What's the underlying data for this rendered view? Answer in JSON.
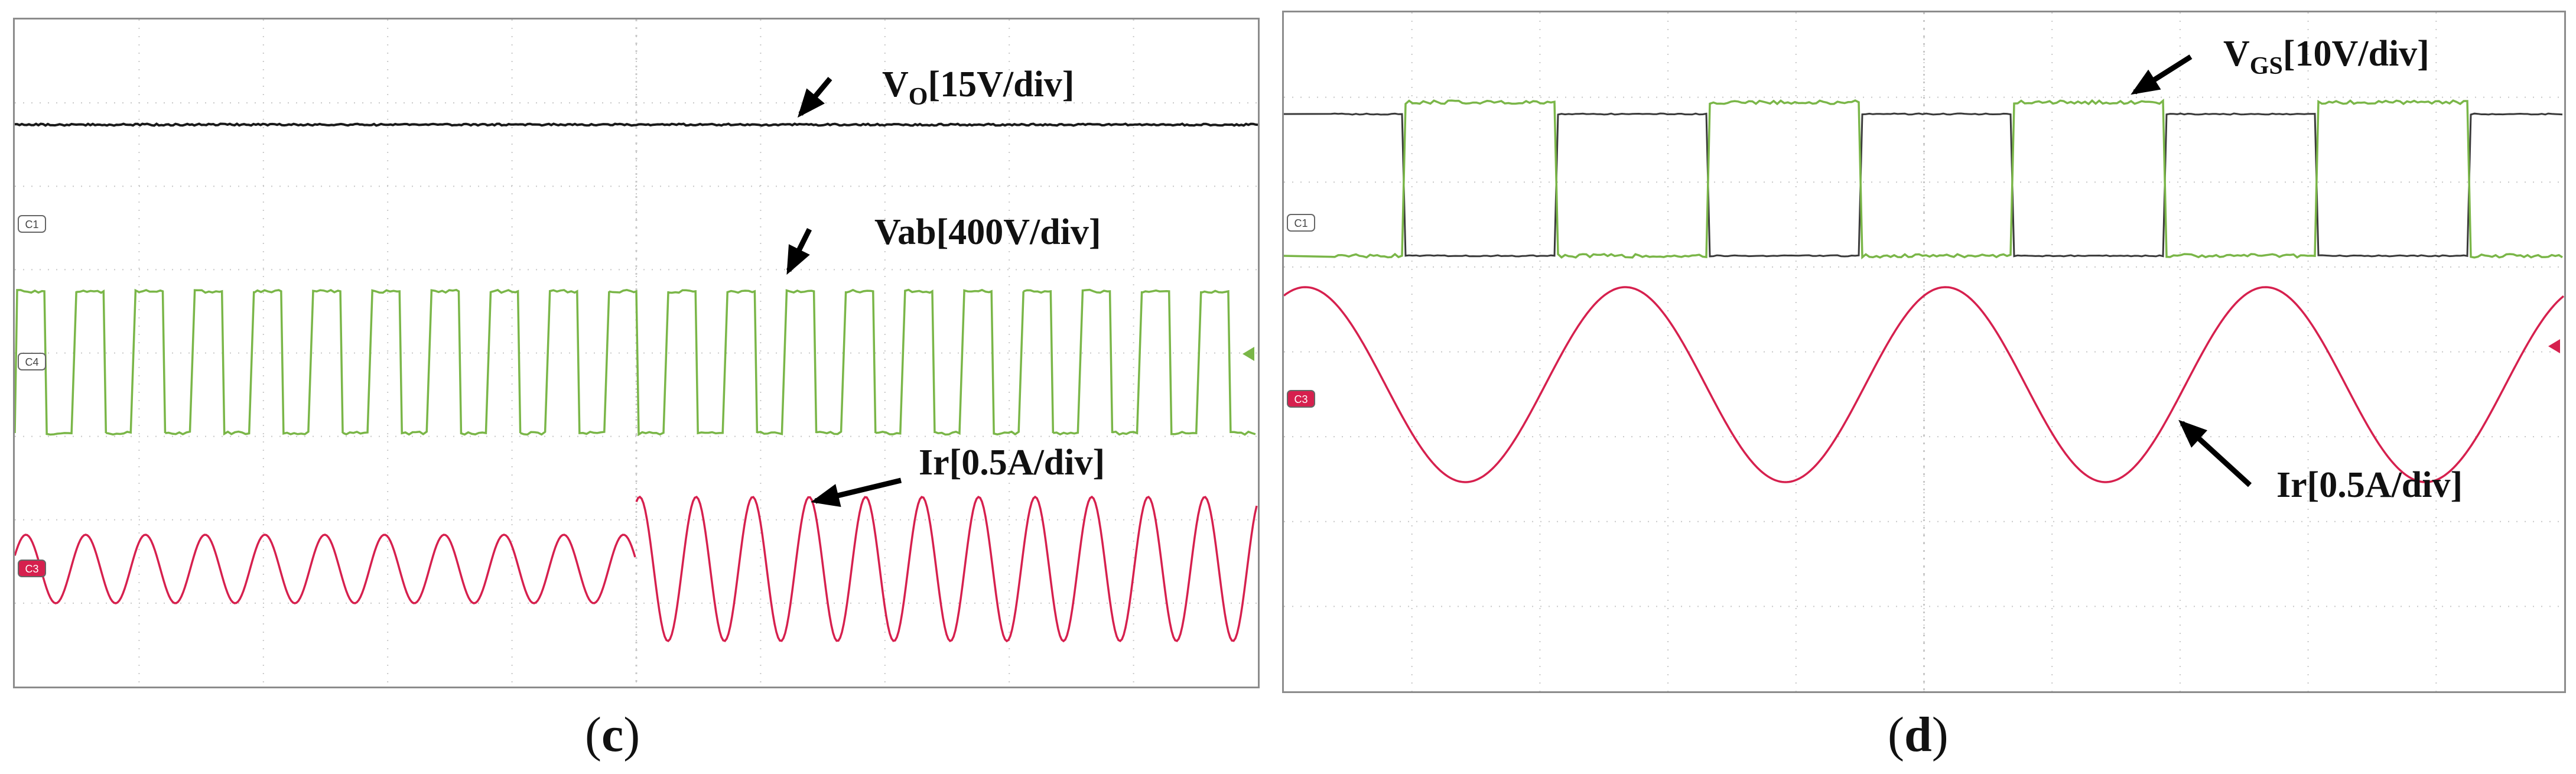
{
  "panels": [
    {
      "id": "c",
      "caption": "c",
      "channel_markers": [
        "C1",
        "C4",
        "C3"
      ],
      "annotations": [
        {
          "text": "V",
          "sub": "O",
          "rest": "[15V/div]"
        },
        {
          "text": "Vab[400V/div]"
        },
        {
          "text": "Ir[0.5A/div]"
        }
      ]
    },
    {
      "id": "d",
      "caption": "d",
      "channel_markers": [
        "C1",
        "C3"
      ],
      "annotations": [
        {
          "text": "V",
          "sub": "GS",
          "rest": "[10V/div]"
        },
        {
          "text": "Ir[0.5A/div]"
        }
      ]
    }
  ],
  "colors": {
    "vo": "#1a1a1a",
    "vab": "#7ab648",
    "vgs_green": "#7ab648",
    "vgs_black": "#3a3a3a",
    "ir": "#d6204e",
    "grid": "#c8c8c8",
    "frame": "#8c8c8c"
  },
  "chart_data": [
    {
      "type": "line",
      "panel": "c",
      "title": "",
      "xlabel": "",
      "ylabel": "",
      "grid": true,
      "series": [
        {
          "name": "VO[15V/div]",
          "values_desc": "constant DC level",
          "level_div": 3.2
        },
        {
          "name": "Vab[400V/div]",
          "waveform": "square",
          "cycles": 21,
          "amplitude_div": 1.1
        },
        {
          "name": "Ir[0.5A/div]",
          "waveform": "sine",
          "cycles_first_half": 10,
          "amplitude_first_half_div": 0.45,
          "cycles_second_half": 11,
          "amplitude_second_half_div": 1.1
        }
      ]
    },
    {
      "type": "line",
      "panel": "d",
      "title": "",
      "xlabel": "",
      "ylabel": "",
      "grid": true,
      "series": [
        {
          "name": "VGS[10V/div]",
          "waveform": "complementary square pair",
          "cycles": 4,
          "amplitude_div": 1.1
        },
        {
          "name": "Ir[0.5A/div]",
          "waveform": "sine",
          "cycles": 4,
          "amplitude_div": 0.8
        }
      ]
    }
  ]
}
